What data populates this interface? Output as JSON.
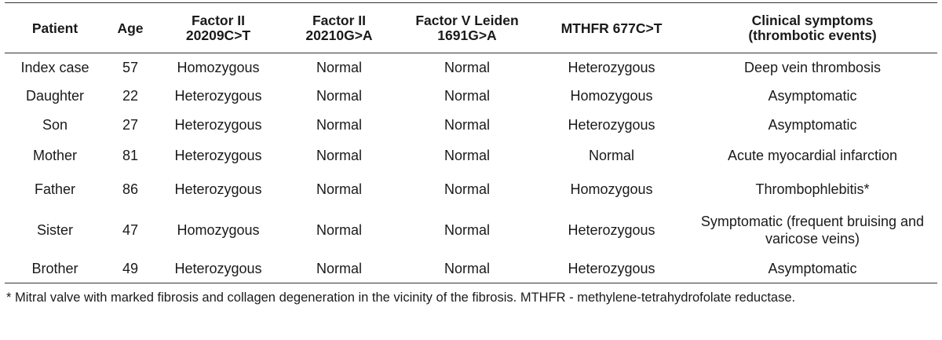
{
  "table": {
    "header": [
      [
        "Patient"
      ],
      [
        "Age"
      ],
      [
        "Factor II",
        "20209C>T"
      ],
      [
        "Factor II",
        "20210G>A"
      ],
      [
        "Factor V Leiden",
        "1691G>A"
      ],
      [
        "MTHFR 677C>T"
      ],
      [
        "Clinical symptoms",
        "(thrombotic events)"
      ]
    ],
    "rows": [
      [
        "Index case",
        57,
        "Homozygous",
        "Normal",
        "Normal",
        "Heterozygous",
        "Deep vein thrombosis"
      ],
      [
        "Daughter",
        22,
        "Heterozygous",
        "Normal",
        "Normal",
        "Homozygous",
        "Asymptomatic"
      ],
      [
        "Son",
        27,
        "Heterozygous",
        "Normal",
        "Normal",
        "Heterozygous",
        "Asymptomatic"
      ],
      [
        "Mother",
        81,
        "Heterozygous",
        "Normal",
        "Normal",
        "Normal",
        "Acute myocardial infarction"
      ],
      [
        "Father",
        86,
        "Heterozygous",
        "Normal",
        "Normal",
        "Homozygous",
        "Thrombophlebitis*"
      ],
      [
        "Sister",
        47,
        "Homozygous",
        "Normal",
        "Normal",
        "Heterozygous",
        "Symptomatic (frequent bruising and varicose veins)"
      ],
      [
        "Brother",
        49,
        "Heterozygous",
        "Normal",
        "Normal",
        "Heterozygous",
        "Asymptomatic"
      ]
    ],
    "footnote": "* Mitral valve with marked fibrosis and collagen degeneration in the vicinity of the fibrosis. MTHFR - methylene-tetrahydrofolate reductase."
  }
}
